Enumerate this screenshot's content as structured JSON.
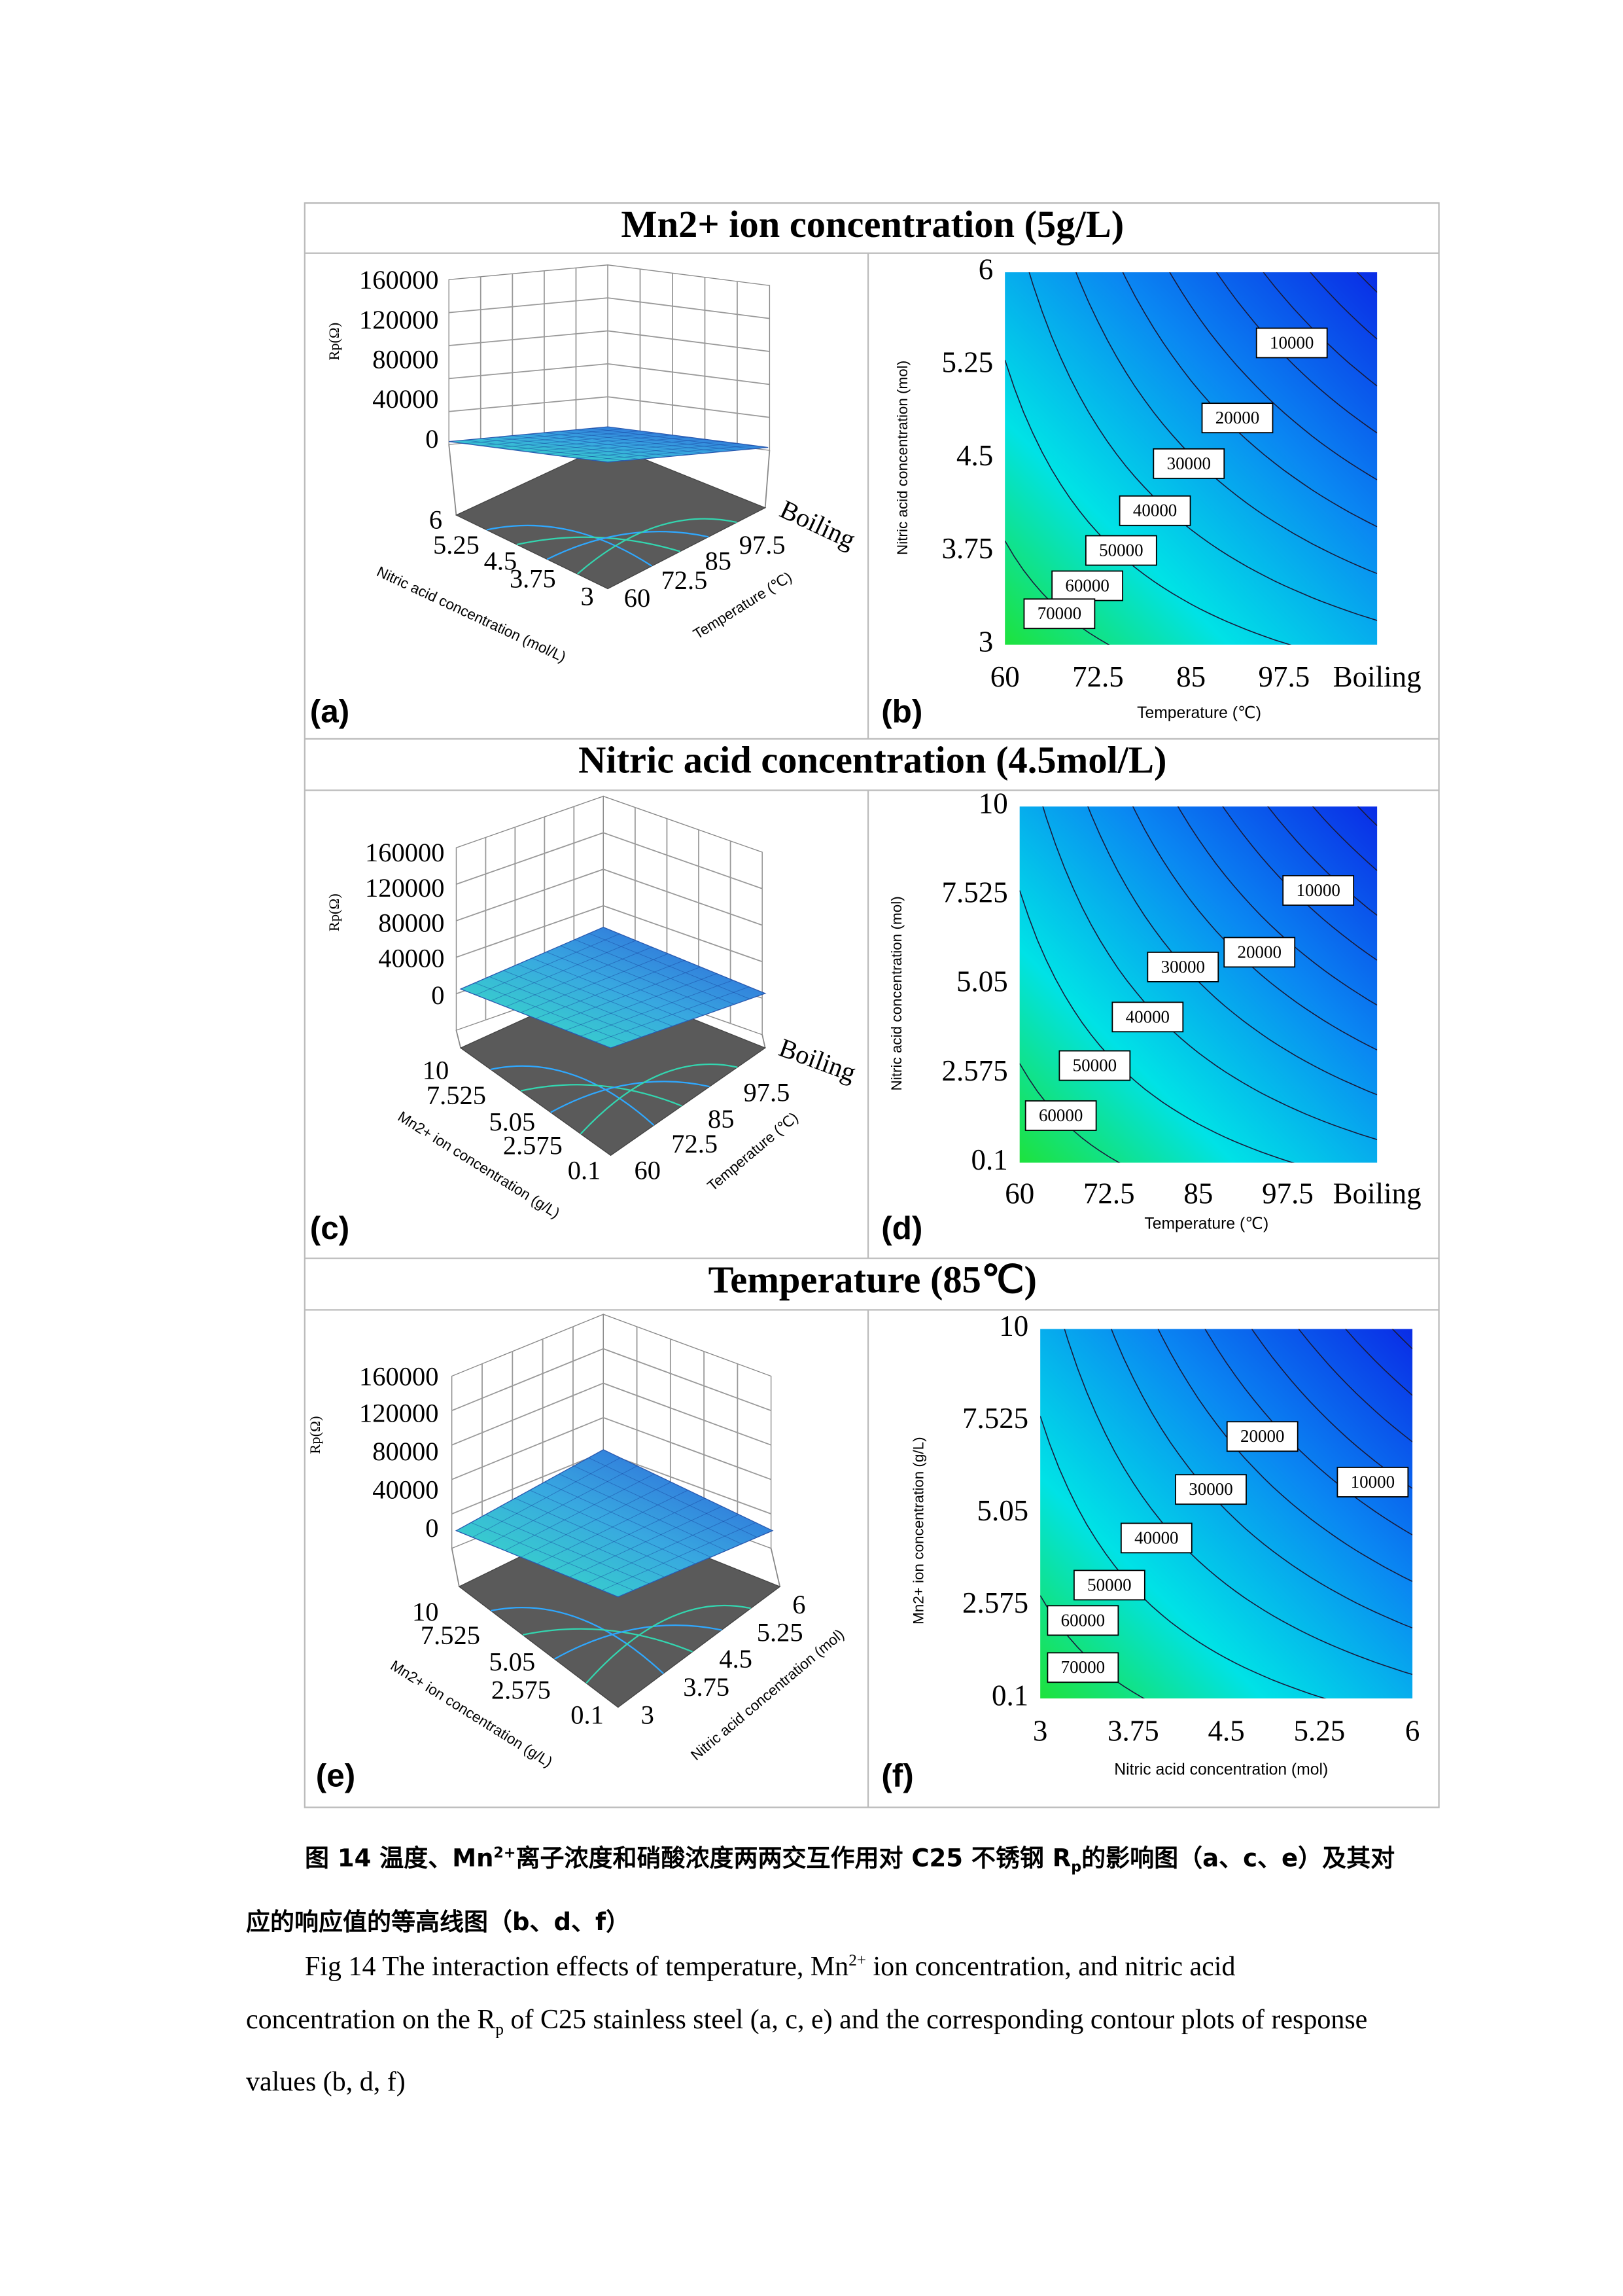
{
  "figure": {
    "rows": [
      {
        "title": "Mn2+ ion concentration (5g/L)",
        "surface": {
          "label": "(a)",
          "z_label": "Rp(Ω)",
          "z_ticks": [
            "160000",
            "120000",
            "80000",
            "40000",
            "0"
          ],
          "left_axis_label": "Nitric acid concentration (mol/L)",
          "left_axis_ticks": [
            "6",
            "5.25",
            "4.5",
            "3.75",
            "3"
          ],
          "right_axis_label": "Temperature (℃)",
          "right_axis_ticks": [
            "Boiling",
            "97.5",
            "85",
            "72.5",
            "60"
          ]
        },
        "contour": {
          "label": "(b)",
          "y_label": "Nitric acid concentration (mol)",
          "y_ticks": [
            "6",
            "5.25",
            "4.5",
            "3.75",
            "3"
          ],
          "x_label": "Temperature (℃)",
          "x_ticks": [
            "60",
            "72.5",
            "85",
            "97.5",
            "Boiling"
          ],
          "contour_labels": [
            "10000",
            "20000",
            "30000",
            "40000",
            "50000",
            "60000",
            "70000"
          ]
        }
      },
      {
        "title": "Nitric acid concentration  (4.5mol/L)",
        "surface": {
          "label": "(c)",
          "z_label": "Rp(Ω)",
          "z_ticks": [
            "160000",
            "120000",
            "80000",
            "40000",
            "0"
          ],
          "left_axis_label": "Mn2+ ion concentration (g/L)",
          "left_axis_ticks": [
            "10",
            "7.525",
            "5.05",
            "2.575",
            "0.1"
          ],
          "right_axis_label": "Temperature (℃)",
          "right_axis_ticks": [
            "Boiling",
            "97.5",
            "85",
            "72.5",
            "60"
          ]
        },
        "contour": {
          "label": "(d)",
          "y_label": "Nitric acid concentration (mol)",
          "y_ticks": [
            "10",
            "7.525",
            "5.05",
            "2.575",
            "0.1"
          ],
          "x_label": "Temperature (℃)",
          "x_ticks": [
            "60",
            "72.5",
            "85",
            "97.5",
            "Boiling"
          ],
          "contour_labels": [
            "10000",
            "20000",
            "30000",
            "40000",
            "50000",
            "60000"
          ]
        }
      },
      {
        "title": "Temperature (85℃)",
        "surface": {
          "label": "(e)",
          "z_label": "Rp(Ω)",
          "z_ticks": [
            "160000",
            "120000",
            "80000",
            "40000",
            "0"
          ],
          "left_axis_label": "Mn2+ ion concentration (g/L)",
          "left_axis_ticks": [
            "10",
            "7.525",
            "5.05",
            "2.575",
            "0.1"
          ],
          "right_axis_label": "Nitric acid concentration (mol)",
          "right_axis_ticks": [
            "6",
            "5.25",
            "4.5",
            "3.75",
            "3"
          ]
        },
        "contour": {
          "label": "(f)",
          "y_label": "Mn2+ ion concentration (g/L)",
          "y_ticks": [
            "10",
            "7.525",
            "5.05",
            "2.575",
            "0.1"
          ],
          "x_label": "Nitric acid concentration (mol)",
          "x_ticks": [
            "3",
            "3.75",
            "4.5",
            "5.25",
            "6"
          ],
          "contour_labels": [
            "20000",
            "10000",
            "30000",
            "40000",
            "50000",
            "60000",
            "70000"
          ]
        }
      }
    ]
  },
  "caption_cn": [
    "图 14  温度、Mn",
    "2+",
    "离子浓度和硝酸浓度两两交互作用对 C25 不锈钢 R",
    "p",
    "的影响图（a、c、e）及其对应的响应值的等高线图（b、d、f）"
  ],
  "caption_en": [
    "Fig 14 The interaction effects of temperature, Mn",
    "2+",
    " ion concentration, and nitric acid concentration on the R",
    "p",
    " of C25 stainless steel (a, c, e) and the corresponding contour plots of response values (b, d, f)"
  ]
}
